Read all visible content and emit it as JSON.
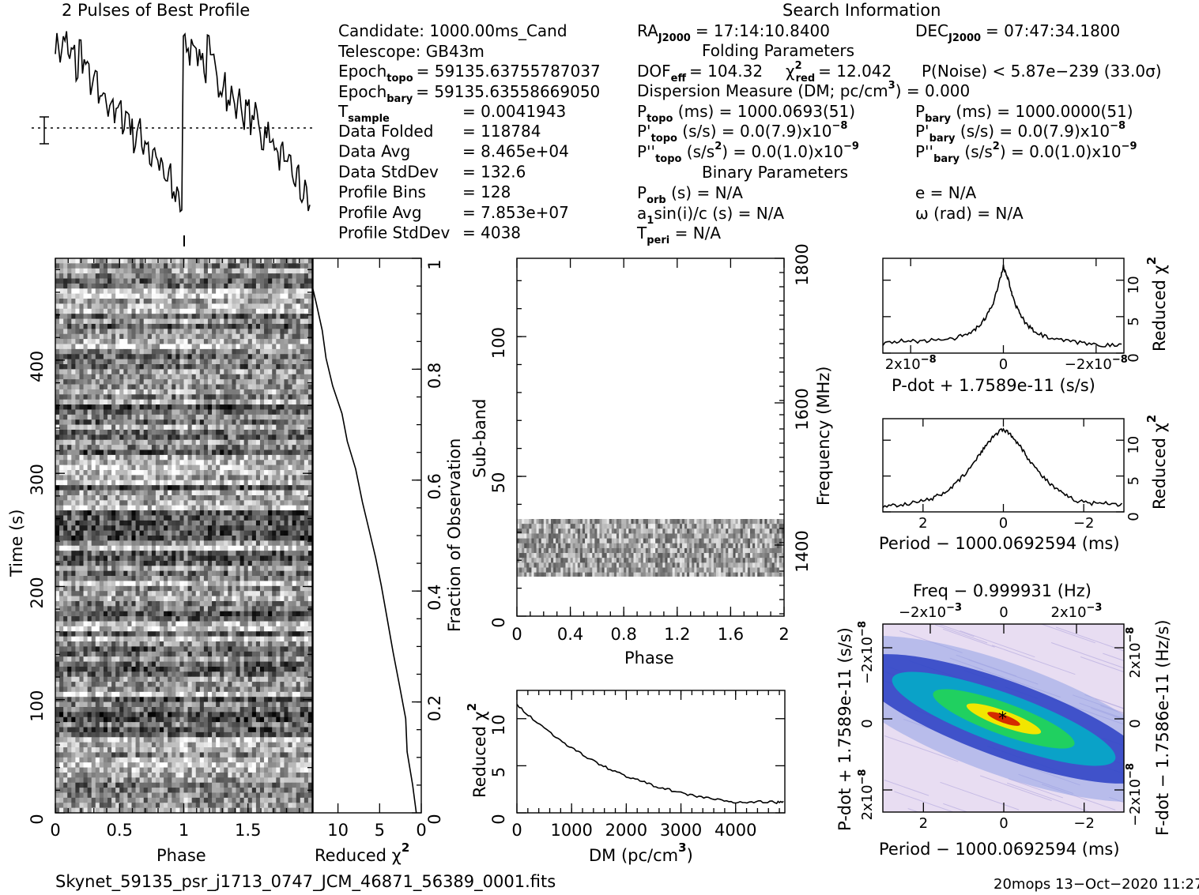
{
  "profile": {
    "title": "2 Pulses of Best Profile",
    "values": [
      0.95,
      0.88,
      0.98,
      0.86,
      0.9,
      0.78,
      0.94,
      0.84,
      0.8,
      0.72,
      0.78,
      0.62,
      0.7,
      0.58,
      0.66,
      0.55,
      0.6,
      0.52,
      0.58,
      0.5,
      0.42,
      0.5,
      0.4,
      0.44,
      0.32,
      0.38,
      0.28,
      0.3,
      0.22,
      0.26,
      0.14,
      0.18,
      0.08,
      0.04
    ]
  },
  "search_info": {
    "heading": "Search Information",
    "candidate": "Candidate:  1000.00ms_Cand",
    "telescope": "Telescope:  GB43m",
    "epoch_topo_label": "Epoch",
    "epoch_topo_sub": "topo",
    "epoch_topo_value": "= 59135.63755787037",
    "epoch_bary_label": "Epoch",
    "epoch_bary_sub": "bary",
    "epoch_bary_value": "= 59135.63558669050",
    "tsample_label": "T",
    "tsample_sub": "sample",
    "tsample_value": "=   0.0041943",
    "rows": [
      {
        "label": "Data Folded",
        "value": "=   118784"
      },
      {
        "label": "Data Avg",
        "value": "=   8.465e+04"
      },
      {
        "label": "Data StdDev",
        "value": "=   132.6"
      },
      {
        "label": "Profile Bins",
        "value": "=   128"
      },
      {
        "label": "Profile Avg",
        "value": "=   7.853e+07"
      },
      {
        "label": "Profile StdDev",
        "value": "=   4038"
      }
    ],
    "ra_label": "RA",
    "ra_sub": "J2000",
    "ra_value": "= 17:14:10.8400",
    "dec_label": "DEC",
    "dec_sub": "J2000",
    "dec_value": "= 07:47:34.1800",
    "folding_heading": "Folding Parameters",
    "dof_line": "DOF",
    "dof_sub": "eff",
    "dof_value": "= 104.32",
    "chi_sub": "red",
    "chi_value": "= 12.042",
    "pnoise": "P(Noise) < 5.87e−239   (33.0σ)",
    "dm_line": "Dispersion Measure (DM; pc/cm",
    "dm_exp": "3",
    "dm_value": ") = 0.000",
    "ptopo_label": "P",
    "ptopo_sub": "topo",
    "ptopo_value": " (ms) =   1000.0693(51)",
    "pbary_label": "P",
    "pbary_sub": "bary",
    "pbary_value": " (ms) =   1000.0000(51)",
    "pdtopo_value": " (s/s) = 0.0(7.9)x10",
    "pdtopo_exp": "−8",
    "pdbary_value": " (s/s) = 0.0(7.9)x10",
    "pdbary_exp": "−8",
    "pddtopo_value": " (s/s",
    "pddtopo_rest": ") = 0.0(1.0)x10",
    "pddtopo_exp": "−9",
    "pddbary_value": " (s/s",
    "pddbary_rest": ") = 0.0(1.0)x10",
    "pddbary_exp": "−9",
    "binary_heading": "Binary Parameters",
    "porb": "P",
    "porb_sub": "orb",
    "porb_value": " (s) = N/A",
    "e_value": "e = N/A",
    "a1_value": "a",
    "a1_sub": "1",
    "a1_rest": "sin(i)/c (s) = N/A",
    "omega_value": "ω (rad) = N/A",
    "tperi": "T",
    "tperi_sub": "peri",
    "tperi_value": " = N/A"
  },
  "chart_data": [
    {
      "type": "heatmap",
      "name": "time-phase",
      "xlabel": "Phase",
      "ylabel": "Time (s)",
      "x_ticks": [
        "0",
        "0.5",
        "1",
        "1.5"
      ],
      "y_ticks": [
        "0",
        "100",
        "200",
        "300",
        "400"
      ],
      "xlim": [
        0,
        2
      ],
      "ylim": [
        0,
        490
      ],
      "colormap": "grayscale"
    },
    {
      "type": "line",
      "name": "reduced-chi2-vs-fraction",
      "xlabel": "Reduced χ",
      "xlabel_exp": "2",
      "ylabel": "Fraction of Observation",
      "x_ticks": [
        "10",
        "5",
        "0"
      ],
      "y_ticks": [
        "0",
        "0.2",
        "0.4",
        "0.6",
        "0.8",
        "1"
      ],
      "xlim": [
        13,
        0
      ],
      "ylim": [
        0,
        1
      ],
      "x": [
        13.5,
        13.2,
        12.6,
        12.0,
        11.4,
        10.5,
        9.6,
        8.8,
        7.9,
        7.0,
        6.3,
        5.6,
        4.8,
        4.1,
        3.3,
        2.6,
        2.0,
        1.6,
        1.1,
        0.6
      ],
      "y": [
        1.0,
        0.96,
        0.92,
        0.87,
        0.82,
        0.77,
        0.72,
        0.67,
        0.62,
        0.56,
        0.51,
        0.46,
        0.41,
        0.35,
        0.29,
        0.23,
        0.17,
        0.11,
        0.05,
        0.0
      ]
    },
    {
      "type": "heatmap",
      "name": "subband-phase",
      "xlabel": "Phase",
      "ylabel": "Sub-band",
      "y2label": "Frequency (MHz)",
      "x_ticks": [
        "0",
        "0.4",
        "0.8",
        "1.2",
        "1.6",
        "2"
      ],
      "y_ticks": [
        "0",
        "50",
        "100"
      ],
      "y2_ticks": [
        "1400",
        "1600",
        "1800"
      ],
      "xlim": [
        0,
        2
      ],
      "ylim": [
        0,
        128
      ]
    },
    {
      "type": "line",
      "name": "dm-curve",
      "xlabel": "DM (pc/cm",
      "xlabel_exp": "3",
      "xlabel_end": ")",
      "ylabel": "Reduced χ",
      "ylabel_exp": "2",
      "x_ticks": [
        "0",
        "1000",
        "2000",
        "3000",
        "4000"
      ],
      "y_ticks": [
        "0",
        "5",
        "10"
      ],
      "xlim": [
        0,
        4900
      ],
      "ylim": [
        0,
        13
      ],
      "x": [
        0,
        250,
        500,
        750,
        1000,
        1250,
        1500,
        1750,
        2000,
        2250,
        2500,
        2750,
        3000,
        3250,
        3500,
        3750,
        4000,
        4250,
        4500,
        4750,
        4900
      ],
      "y": [
        11.5,
        10.2,
        9.0,
        7.9,
        6.9,
        6.0,
        5.2,
        4.5,
        3.9,
        3.4,
        2.9,
        2.5,
        2.1,
        1.8,
        1.6,
        1.3,
        1.1,
        1.1,
        1.2,
        1.1,
        1.2
      ]
    },
    {
      "type": "line",
      "name": "pdot-curve",
      "xlabel": "P-dot + 1.7589e-11 (s/s)",
      "ylabel": "Reduced χ",
      "ylabel_exp": "2",
      "x_ticks": [
        "2x10",
        "0",
        "−2x10"
      ],
      "x_tick_exp": "−8",
      "y_ticks": [
        "0",
        "5",
        "10"
      ],
      "xlim": [
        2.6,
        -2.6
      ],
      "ylim": [
        0,
        13
      ],
      "x": [
        2.6,
        2.2,
        1.8,
        1.4,
        1.0,
        0.7,
        0.5,
        0.35,
        0.2,
        0.1,
        0.0,
        -0.1,
        -0.2,
        -0.35,
        -0.5,
        -0.7,
        -1.0,
        -1.4,
        -1.8,
        -2.2,
        -2.6
      ],
      "y": [
        1.2,
        1.7,
        1.6,
        1.9,
        2.1,
        2.8,
        3.8,
        5.2,
        7.2,
        9.6,
        11.9,
        10.2,
        7.6,
        5.4,
        3.9,
        2.8,
        2.0,
        1.6,
        1.3,
        1.1,
        1.0
      ]
    },
    {
      "type": "line",
      "name": "period-curve",
      "xlabel": "Period − 1000.0692594",
      "xlabel_end": " (ms)",
      "ylabel": "Reduced χ",
      "ylabel_exp": "2",
      "x_ticks": [
        "2",
        "0",
        "−2"
      ],
      "y_ticks": [
        "0",
        "5",
        "10"
      ],
      "xlim": [
        3.0,
        -3.0
      ],
      "ylim": [
        0,
        13
      ],
      "x": [
        3.0,
        2.6,
        2.2,
        1.8,
        1.5,
        1.2,
        0.9,
        0.6,
        0.4,
        0.2,
        0.0,
        -0.2,
        -0.4,
        -0.6,
        -0.9,
        -1.2,
        -1.5,
        -1.8,
        -2.2,
        -2.6,
        -3.0
      ],
      "y": [
        0.8,
        1.0,
        1.3,
        1.8,
        2.6,
        3.8,
        5.6,
        7.9,
        9.6,
        10.8,
        11.6,
        10.6,
        9.4,
        7.6,
        5.4,
        3.7,
        2.4,
        1.6,
        1.2,
        1.3,
        0.9
      ]
    },
    {
      "type": "heatmap",
      "name": "period-pdot",
      "title": "Freq − 0.999931 (Hz)",
      "xlabel": "Period − 1000.0692594",
      "xlabel_end": " (ms)",
      "ylabel": "P-dot + 1.7589e-11 (s/s)",
      "y2label": "F-dot − 1.7586e-11 (Hz/s)",
      "x_ticks": [
        "2",
        "0",
        "−2"
      ],
      "x2_ticks": [
        "−2x10",
        "0",
        "2x10"
      ],
      "x2_tick_exp": "−3",
      "y_ticks": [
        "−2x10",
        "0",
        "2x10"
      ],
      "y_tick_exp": "−8",
      "y2_ticks": [
        "2x10",
        "0",
        "−2x10"
      ],
      "y2_tick_exp": "−8",
      "colormap": "rainbow"
    }
  ],
  "footer": {
    "filename": "Skynet_59135_psr_j1713_0747_JCM_46871_56389_0001.fits",
    "stamp": "20mops 13−Oct−2020 11:27"
  }
}
